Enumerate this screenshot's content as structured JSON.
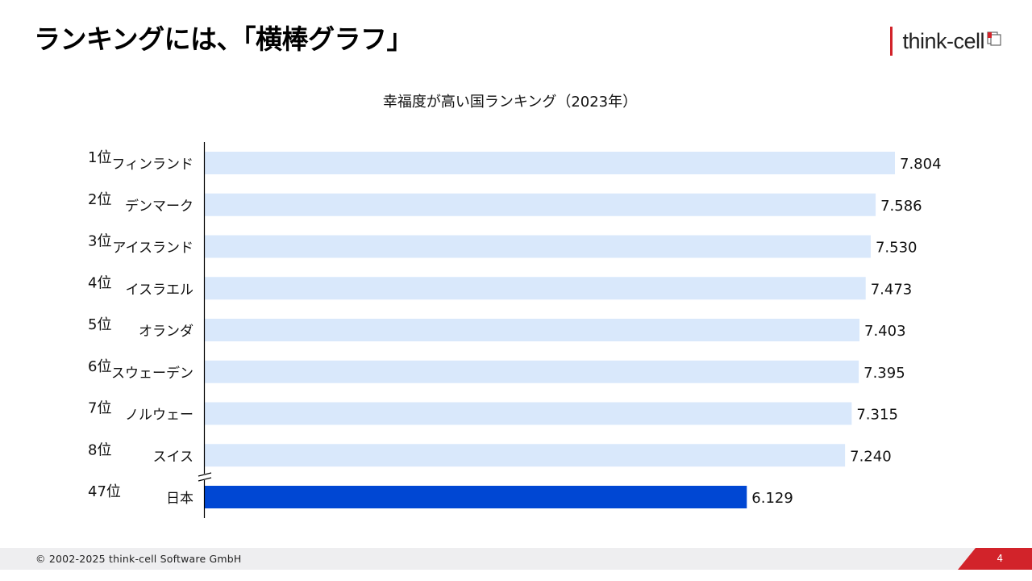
{
  "slide": {
    "title": "ランキングには、「横棒グラフ」",
    "logo_text": "think-cell",
    "footer_copyright": "© 2002-2025 think-cell Software GmbH",
    "page_number": "4",
    "accent_color": "#d2232a"
  },
  "chart_data": {
    "type": "bar",
    "orientation": "horizontal",
    "title": "幸福度が高い国ランキング（2023年）",
    "ranks": [
      "1位",
      "2位",
      "3位",
      "4位",
      "5位",
      "6位",
      "7位",
      "8位",
      "47位"
    ],
    "categories": [
      "フィンランド",
      "デンマーク",
      "アイスランド",
      "イスラエル",
      "オランダ",
      "スウェーデン",
      "ノルウェー",
      "スイス",
      "日本"
    ],
    "values": [
      7.804,
      7.586,
      7.53,
      7.473,
      7.403,
      7.395,
      7.315,
      7.24,
      6.129
    ],
    "value_labels": [
      "7.804",
      "7.586",
      "7.530",
      "7.473",
      "7.403",
      "7.395",
      "7.315",
      "7.240",
      "6.129"
    ],
    "highlight": "日本",
    "bar_color": "#d9e8fb",
    "highlight_color": "#0047d3",
    "axis_break_before": "日本",
    "xlim": [
      0,
      7.804
    ],
    "grid": false,
    "legend": "none"
  }
}
